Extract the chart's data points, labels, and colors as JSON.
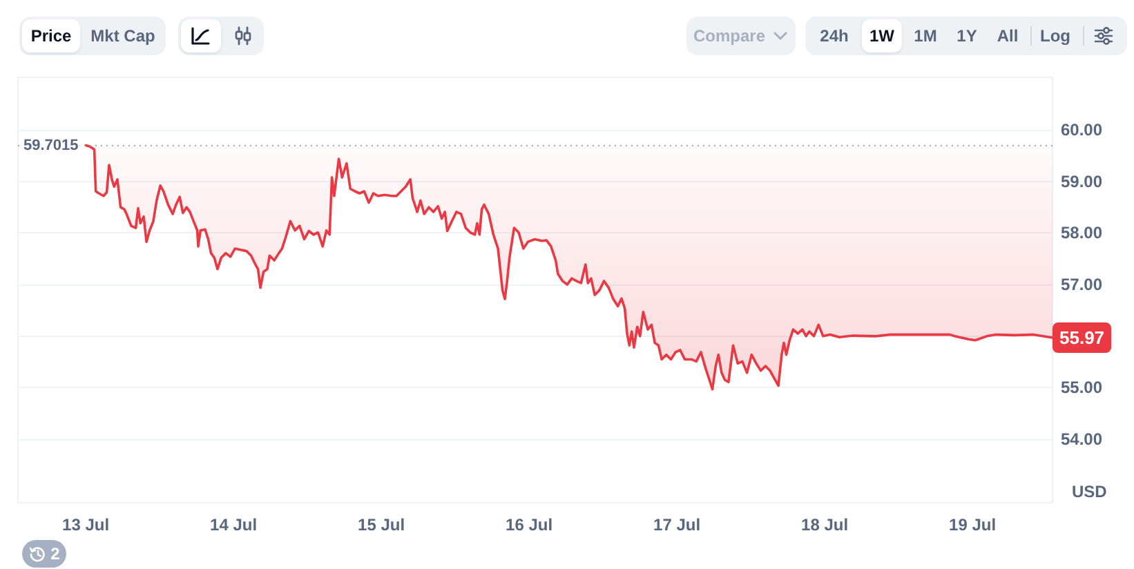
{
  "chart_data": {
    "type": "line",
    "ylabel": "USD",
    "x": [
      "--07-13T00:00",
      "--07-13T00:39",
      "--07-13T01:24",
      "--07-13T01:38",
      "--07-13T02:09",
      "--07-13T02:54",
      "--07-13T03:25",
      "--07-13T03:48",
      "--07-13T04:15",
      "--07-13T04:37",
      "--07-13T05:09",
      "--07-13T05:22",
      "--07-13T05:40",
      "--07-13T06:16",
      "--07-13T06:38",
      "--07-13T07:23",
      "--07-13T08:08",
      "--07-13T08:31",
      "--07-13T08:53",
      "--07-13T09:25",
      "--07-13T09:52",
      "--07-13T10:23",
      "--07-13T10:59",
      "--07-13T11:31",
      "--07-13T12:07",
      "--07-13T12:38",
      "--07-13T13:23",
      "--07-13T14:08",
      "--07-13T14:40",
      "--07-13T15:16",
      "--07-13T15:47",
      "--07-13T16:23",
      "--07-13T16:55",
      "--07-13T17:31",
      "--07-13T18:07",
      "--07-13T18:16",
      "--07-13T18:38",
      "--07-13T19:23",
      "--07-13T19:54",
      "--07-13T20:21",
      "--07-13T20:53",
      "--07-13T21:24",
      "--07-13T22:00",
      "--07-13T22:45",
      "--07-13T23:30",
      "--07-14T00:15",
      "--07-14T01:00",
      "--07-14T02:07",
      "--07-14T02:52",
      "--07-14T03:23",
      "--07-14T03:59",
      "--07-14T04:22",
      "--07-14T04:53",
      "--07-14T05:29",
      "--07-14T05:52",
      "--07-14T06:37",
      "--07-14T07:22",
      "--07-14T07:53",
      "--07-14T08:29",
      "--07-14T09:14",
      "--07-14T09:59",
      "--07-14T10:44",
      "--07-14T11:29",
      "--07-14T12:14",
      "--07-14T12:59",
      "--07-14T13:44",
      "--07-14T14:29",
      "--07-14T15:05",
      "--07-14T15:36",
      "--07-14T15:59",
      "--07-14T16:21",
      "--07-14T17:06",
      "--07-14T17:38",
      "--07-14T18:22",
      "--07-14T18:58",
      "--07-14T19:43",
      "--07-14T20:28",
      "--07-14T21:13",
      "--07-14T21:58",
      "--07-14T22:43",
      "--07-14T23:28",
      "--07-15T00:35",
      "--07-15T01:43",
      "--07-15T02:28",
      "--07-15T03:13",
      "--07-15T03:58",
      "--07-15T04:43",
      "--07-15T05:05",
      "--07-15T05:50",
      "--07-15T06:22",
      "--07-15T06:58",
      "--07-15T07:43",
      "--07-15T08:28",
      "--07-15T09:13",
      "--07-15T09:49",
      "--07-15T10:20",
      "--07-15T10:43",
      "--07-15T11:28",
      "--07-15T12:12",
      "--07-15T12:57",
      "--07-15T13:42",
      "--07-15T14:27",
      "--07-15T15:12",
      "--07-15T15:34",
      "--07-15T15:57",
      "--07-15T16:19",
      "--07-15T16:42",
      "--07-15T17:04",
      "--07-15T17:27",
      "--07-15T18:12",
      "--07-15T18:57",
      "--07-15T19:41",
      "--07-15T20:04",
      "--07-15T20:26",
      "--07-15T20:49",
      "--07-15T21:34",
      "--07-15T22:19",
      "--07-15T23:04",
      "--07-15T23:49",
      "--07-16T00:56",
      "--07-16T02:04",
      "--07-16T02:49",
      "--07-16T03:34",
      "--07-16T04:19",
      "--07-16T04:41",
      "--07-16T05:26",
      "--07-16T06:11",
      "--07-16T06:56",
      "--07-16T07:41",
      "--07-16T08:26",
      "--07-16T09:10",
      "--07-16T09:33",
      "--07-16T10:04",
      "--07-16T10:40",
      "--07-16T11:25",
      "--07-16T12:10",
      "--07-16T12:55",
      "--07-16T13:40",
      "--07-16T14:25",
      "--07-16T15:01",
      "--07-16T15:32",
      "--07-16T15:55",
      "--07-16T16:17",
      "--07-16T16:40",
      "--07-16T17:02",
      "--07-16T17:34",
      "--07-16T18:01",
      "--07-16T18:32",
      "--07-16T19:17",
      "--07-16T19:53",
      "--07-16T20:25",
      "--07-16T21:01",
      "--07-16T21:32",
      "--07-16T22:17",
      "--07-16T23:02",
      "--07-16T23:47",
      "--07-17T00:32",
      "--07-17T01:17",
      "--07-17T02:24",
      "--07-17T03:09",
      "--07-17T03:54",
      "--07-17T04:39",
      "--07-17T05:24",
      "--07-17T05:46",
      "--07-17T06:18",
      "--07-17T06:45",
      "--07-17T07:16",
      "--07-17T07:48",
      "--07-17T08:23",
      "--07-17T09:08",
      "--07-17T09:53",
      "--07-17T10:38",
      "--07-17T11:23",
      "--07-17T12:08",
      "--07-17T12:53",
      "--07-17T13:38",
      "--07-17T14:23",
      "--07-17T15:08",
      "--07-17T15:44",
      "--07-17T16:29",
      "--07-17T17:01",
      "--07-17T17:23",
      "--07-17T17:46",
      "--07-17T18:17",
      "--07-17T18:53",
      "--07-17T19:38",
      "--07-17T20:23",
      "--07-17T20:59",
      "--07-17T21:30",
      "--07-17T22:15",
      "--07-17T23:00",
      "--07-17T23:45",
      "--07-18T00:52",
      "--07-18T02:22",
      "--07-18T04:37",
      "--07-18T08:22",
      "--07-18T10:37",
      "--07-18T15:52",
      "--07-18T20:21",
      "--07-18T21:06",
      "--07-18T23:21",
      "--07-19T00:28",
      "--07-19T02:20",
      "--07-19T03:50",
      "--07-19T06:50",
      "--07-19T09:50",
      "--07-19T13:00"
    ],
    "series": [
      {
        "color": "#ea3943",
        "values": [
          59.7,
          59.68,
          59.62,
          58.81,
          58.77,
          58.72,
          58.79,
          59.32,
          59.04,
          58.9,
          59.04,
          58.81,
          58.5,
          58.46,
          58.37,
          58.14,
          58.1,
          58.48,
          58.19,
          58.32,
          57.83,
          58.05,
          58.23,
          58.63,
          58.92,
          58.81,
          58.55,
          58.37,
          58.55,
          58.7,
          58.39,
          58.5,
          58.41,
          58.23,
          58.05,
          57.74,
          58.05,
          58.07,
          57.88,
          57.61,
          57.52,
          57.3,
          57.52,
          57.61,
          57.54,
          57.7,
          57.68,
          57.65,
          57.56,
          57.43,
          57.3,
          56.94,
          57.25,
          57.3,
          57.56,
          57.47,
          57.61,
          57.7,
          57.92,
          58.23,
          58.05,
          58.14,
          57.88,
          58.04,
          57.97,
          58.01,
          57.74,
          58.05,
          57.97,
          59.08,
          58.72,
          59.44,
          59.08,
          59.35,
          58.86,
          58.81,
          58.77,
          58.81,
          58.59,
          58.77,
          58.72,
          58.74,
          58.72,
          58.72,
          58.81,
          58.9,
          59.04,
          58.68,
          58.41,
          58.63,
          58.37,
          58.5,
          58.41,
          58.52,
          58.28,
          58.41,
          58.04,
          58.23,
          58.41,
          58.37,
          58.1,
          58.01,
          57.97,
          58.19,
          57.97,
          58.46,
          58.55,
          58.46,
          58.37,
          57.97,
          57.7,
          56.89,
          56.72,
          57.07,
          57.52,
          58.1,
          58.01,
          57.7,
          57.83,
          57.88,
          57.85,
          57.86,
          57.74,
          57.47,
          57.21,
          57.07,
          57.0,
          57.12,
          57.07,
          57.03,
          57.39,
          57.03,
          57.12,
          56.8,
          56.89,
          57.07,
          56.94,
          56.72,
          56.58,
          56.73,
          56.54,
          56.05,
          55.82,
          56.09,
          55.78,
          56.18,
          56.0,
          56.47,
          56.13,
          56.22,
          55.87,
          55.82,
          55.55,
          55.64,
          55.55,
          55.69,
          55.73,
          55.55,
          55.55,
          55.51,
          55.69,
          55.38,
          55.11,
          54.97,
          55.42,
          55.64,
          55.29,
          55.15,
          55.11,
          55.82,
          55.47,
          55.51,
          55.29,
          55.64,
          55.47,
          55.33,
          55.42,
          55.33,
          55.2,
          55.04,
          55.64,
          55.87,
          55.64,
          55.91,
          56.13,
          56.05,
          56.13,
          56.0,
          56.09,
          56.0,
          56.22,
          56.0,
          56.03,
          55.98,
          56.01,
          56.0,
          56.03,
          56.03,
          56.03,
          56.0,
          55.94,
          55.92,
          56.0,
          56.03,
          56.02,
          56.03,
          55.97
        ],
        "lower": [
          59.7,
          59.68,
          59.62,
          58.81,
          58.77,
          58.72,
          58.79,
          59.32,
          59.04,
          58.9,
          59.04,
          58.81,
          58.5,
          58.46,
          58.37,
          58.14,
          58.1,
          58.48,
          58.19,
          58.32,
          57.83,
          58.05,
          58.23,
          58.63,
          58.92,
          58.81,
          58.55,
          58.37,
          58.55,
          58.7,
          58.39,
          58.5,
          58.41,
          58.23,
          58.05,
          57.74,
          58.05,
          58.07,
          57.88,
          57.61,
          57.52,
          57.3,
          57.52,
          57.61,
          57.54,
          57.7,
          57.68,
          57.65,
          57.56,
          57.43,
          57.3,
          56.94,
          57.25,
          57.3,
          57.56,
          57.47,
          57.61,
          57.7,
          57.92,
          58.23,
          58.05,
          58.14,
          57.88,
          58.04,
          57.97,
          58.01,
          57.74,
          58.05,
          57.97,
          59.08,
          58.72,
          59.44,
          59.08,
          59.35,
          58.86,
          58.81,
          58.77,
          58.81,
          58.59,
          58.77,
          58.72,
          58.74,
          58.72,
          58.72,
          58.81,
          58.9,
          59.04,
          58.68,
          58.41,
          58.63,
          58.37,
          58.5,
          58.41,
          58.52,
          58.28,
          58.41,
          58.04,
          58.23,
          58.41,
          58.37,
          58.1,
          58.01,
          57.97,
          58.19,
          57.97,
          58.46,
          58.55,
          58.46,
          58.37,
          57.97,
          57.7,
          56.89,
          56.72,
          57.07,
          57.52,
          58.1,
          58.01,
          57.7,
          57.83,
          57.88,
          57.85,
          57.86,
          57.74,
          57.47,
          57.21,
          57.07,
          57.0,
          57.12,
          57.07,
          57.03,
          57.39,
          57.03,
          57.12,
          56.8,
          56.89,
          57.07,
          56.94,
          56.72,
          56.58,
          56.73,
          56.54,
          56.05,
          55.82,
          56.09,
          55.78,
          56.18,
          56.0,
          56.47,
          56.13,
          56.22,
          55.87,
          55.82,
          55.55,
          55.64,
          55.55,
          55.69,
          55.73,
          55.55,
          55.55,
          55.51,
          55.69,
          55.38,
          55.11,
          54.97,
          55.42,
          55.64,
          55.29,
          55.15,
          55.11,
          55.82,
          55.47,
          55.51,
          55.29,
          55.64,
          55.47,
          55.33,
          55.42,
          55.33,
          55.2,
          55.04,
          55.64,
          55.87,
          55.64,
          55.91,
          56.13,
          56.05,
          56.13,
          56.0,
          56.09,
          56.0,
          56.22,
          56.0,
          56.03,
          55.98,
          56.01,
          56.0,
          56.03,
          56.03,
          56.03,
          56.0,
          55.94,
          55.92,
          56.0,
          56.03,
          56.02,
          56.03,
          55.97
        ],
        "upper": [
          59.7015,
          59.7015,
          59.7015,
          59.7015,
          59.7015,
          59.7015,
          59.7015,
          59.7015,
          59.7015,
          59.7015,
          59.7015,
          59.7015,
          59.7015,
          59.7015,
          59.7015,
          59.7015,
          59.7015,
          59.7015,
          59.7015,
          59.7015,
          59.7015,
          59.7015,
          59.7015,
          59.7015,
          59.7015,
          59.7015,
          59.7015,
          59.7015,
          59.7015,
          59.7015,
          59.7015,
          59.7015,
          59.7015,
          59.7015,
          59.7015,
          59.7015,
          59.7015,
          59.7015,
          59.7015,
          59.7015,
          59.7015,
          59.7015,
          59.7015,
          59.7015,
          59.7015,
          59.7015,
          59.7015,
          59.7015,
          59.7015,
          59.7015,
          59.7015,
          59.7015,
          59.7015,
          59.7015,
          59.7015,
          59.7015,
          59.7015,
          59.7015,
          59.7015,
          59.7015,
          59.7015,
          59.7015,
          59.7015,
          59.7015,
          59.7015,
          59.7015,
          59.7015,
          59.7015,
          59.7015,
          59.7015,
          59.7015,
          59.7015,
          59.7015,
          59.7015,
          59.7015,
          59.7015,
          59.7015,
          59.7015,
          59.7015,
          59.7015,
          59.7015,
          59.7015,
          59.7015,
          59.7015,
          59.7015,
          59.7015,
          59.7015,
          59.7015,
          59.7015,
          59.7015,
          59.7015,
          59.7015,
          59.7015,
          59.7015,
          59.7015,
          59.7015,
          59.7015,
          59.7015,
          59.7015,
          59.7015,
          59.7015,
          59.7015,
          59.7015,
          59.7015,
          59.7015,
          59.7015,
          59.7015,
          59.7015,
          59.7015,
          59.7015,
          59.7015,
          59.7015,
          59.7015,
          59.7015,
          59.7015,
          59.7015,
          59.7015,
          59.7015,
          59.7015,
          59.7015,
          59.7015,
          59.7015,
          59.7015,
          59.7015,
          59.7015,
          59.7015,
          59.7015,
          59.7015,
          59.7015,
          59.7015,
          59.7015,
          59.7015,
          59.7015,
          59.7015,
          59.7015,
          59.7015,
          59.7015,
          59.7015,
          59.7015,
          59.7015,
          59.7015,
          59.7015,
          59.7015,
          59.7015,
          59.7015,
          59.7015,
          59.7015,
          59.7015,
          59.7015,
          59.7015,
          59.7015,
          59.7015,
          59.7015,
          59.7015,
          59.7015,
          59.7015,
          59.7015,
          59.7015,
          59.7015,
          59.7015,
          59.7015,
          59.7015,
          59.7015,
          59.7015,
          59.7015,
          59.7015,
          59.7015,
          59.7015,
          59.7015,
          59.7015,
          59.7015,
          59.7015,
          59.7015,
          59.7015,
          59.7015,
          59.7015,
          59.7015,
          59.7015,
          59.7015,
          59.7015,
          59.7015,
          59.7015,
          59.7015,
          59.7015,
          59.7015,
          59.7015,
          59.7015,
          59.7015,
          59.7015,
          59.7015,
          59.7015,
          59.7015,
          59.7015,
          59.7015,
          59.7015,
          59.7015,
          59.7015,
          59.7015,
          59.7015,
          59.7015,
          59.7015,
          59.7015,
          59.7015,
          59.7015,
          59.7015,
          59.7015,
          59.7015
        ],
        "value_labels": [
          null,
          null,
          null,
          null,
          null,
          null,
          null,
          null,
          null,
          null,
          null,
          null,
          null,
          null,
          null,
          null,
          null,
          null,
          null,
          null,
          null,
          null,
          null,
          null,
          null,
          null,
          null,
          null,
          null,
          null,
          null,
          null,
          null,
          null,
          null,
          null,
          null,
          null,
          null,
          null,
          null,
          null,
          null,
          null,
          null,
          null,
          null,
          null,
          null,
          null,
          null,
          null,
          null,
          null,
          null,
          null,
          null,
          null,
          null,
          null,
          null,
          null,
          null,
          null,
          null,
          null,
          null,
          null,
          null,
          null,
          null,
          null,
          null,
          null,
          null,
          null,
          null,
          null,
          null,
          null,
          null,
          null,
          null,
          null,
          null,
          null,
          null,
          null,
          null,
          null,
          null,
          null,
          null,
          null,
          null,
          null,
          null,
          null,
          null,
          null,
          null,
          null,
          null,
          null,
          null,
          null,
          null,
          null,
          null,
          null,
          null,
          null,
          null,
          null,
          null,
          null,
          null,
          null,
          null,
          null,
          null,
          null,
          null,
          null,
          null,
          null,
          null,
          null,
          null,
          null,
          null,
          null,
          null,
          null,
          null,
          null,
          null,
          null,
          null,
          null,
          null,
          null,
          null,
          null,
          null,
          null,
          null,
          null,
          null,
          null,
          null,
          null,
          null,
          null,
          null,
          null,
          null,
          null,
          null,
          null,
          null,
          null,
          null,
          null,
          null,
          null,
          null,
          null,
          null,
          null,
          null,
          null,
          null,
          null,
          null,
          null,
          null,
          null,
          null,
          null,
          null,
          null,
          null,
          null,
          null,
          null,
          null,
          null,
          null,
          null,
          null,
          null,
          null,
          null,
          null,
          null,
          null,
          null,
          null,
          null,
          null,
          null,
          null,
          null,
          null,
          null,
          "55.97"
        ]
      }
    ],
    "xlim": [
      "--07-12T13:00",
      "--07-19T13:00"
    ],
    "xticks": [
      {
        "value": "--07-13",
        "label": "13 Jul"
      },
      {
        "value": "--07-14",
        "label": "14 Jul"
      },
      {
        "value": "--07-15",
        "label": "15 Jul"
      },
      {
        "value": "--07-16",
        "label": "16 Jul"
      },
      {
        "value": "--07-17",
        "label": "17 Jul"
      },
      {
        "value": "--07-18",
        "label": "18 Jul"
      },
      {
        "value": "--07-19",
        "label": "19 Jul"
      }
    ],
    "ylim": [
      52.77,
      61.02
    ],
    "yticks": [
      {
        "value": 54,
        "label": "54.00"
      },
      {
        "value": 55,
        "label": "55.00"
      },
      {
        "value": 56,
        "label": null
      },
      {
        "value": 57,
        "label": "57.00"
      },
      {
        "value": 58,
        "label": "58.00"
      },
      {
        "value": 59,
        "label": "59.00"
      },
      {
        "value": 60,
        "label": "60.00"
      }
    ],
    "grid": "y",
    "ref_lines": [
      {
        "axis": "y",
        "value": 59.7015,
        "label": "59.7015",
        "color": "#a1a7bb",
        "line_style": "dotted"
      }
    ],
    "annotations": [
      "Price",
      "Mkt Cap",
      "Compare",
      "24h",
      "1W",
      "1M",
      "1Y",
      "All",
      "Log",
      "2"
    ]
  }
}
